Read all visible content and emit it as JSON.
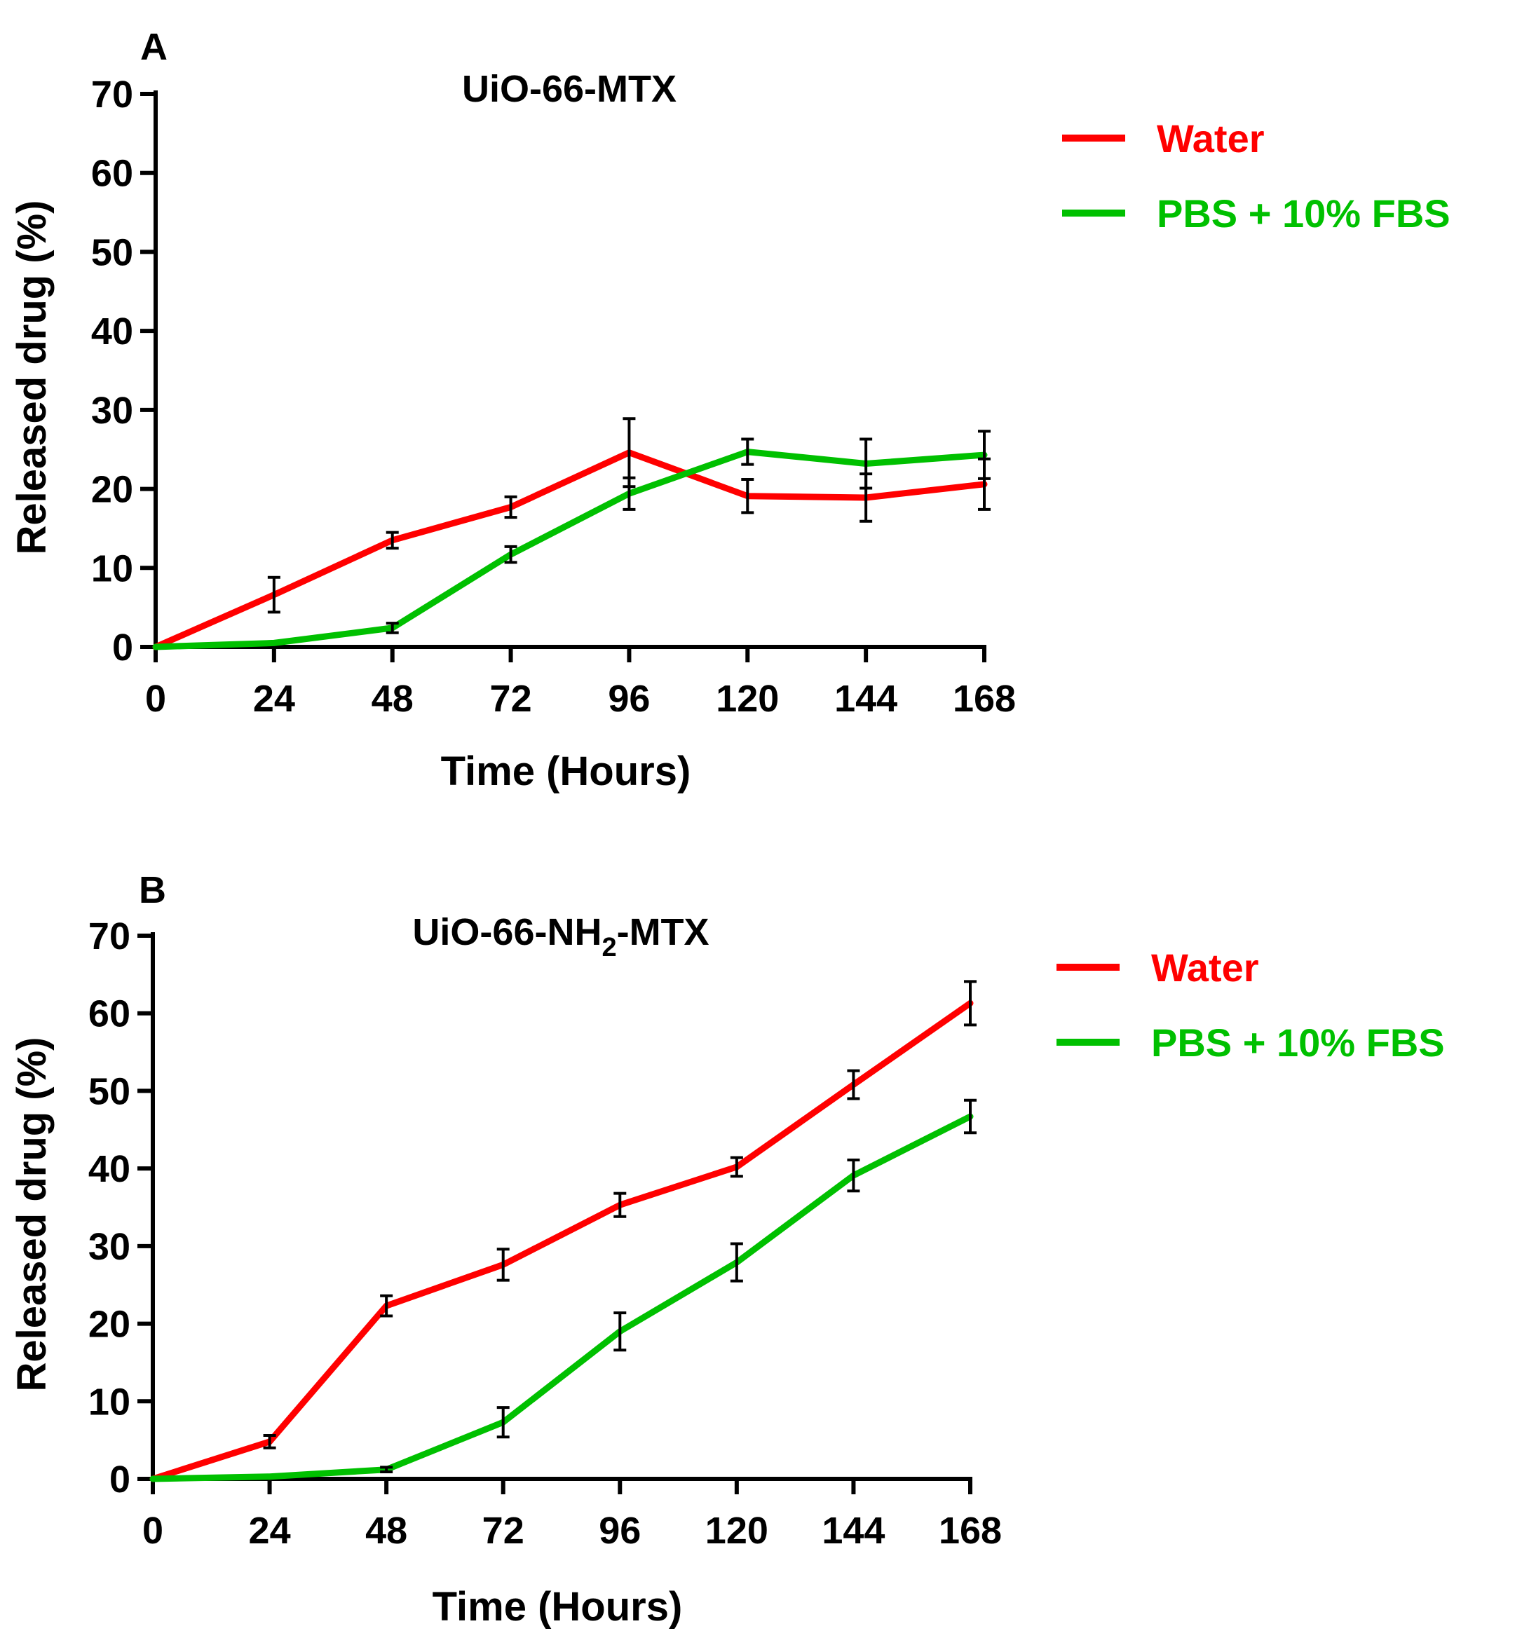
{
  "chart_data": [
    {
      "type": "line",
      "panel_label": "A",
      "title": "UiO-66-MTX",
      "title_sub": "",
      "title_suffix": "",
      "xlabel": "Time (Hours)",
      "ylabel": "Released drug (%)",
      "x": [
        0,
        24,
        48,
        72,
        96,
        120,
        144,
        168
      ],
      "xticks": [
        "0",
        "24",
        "48",
        "72",
        "96",
        "120",
        "144",
        "168"
      ],
      "yticks": [
        "0",
        "10",
        "20",
        "30",
        "40",
        "50",
        "60",
        "70"
      ],
      "ylim": [
        0,
        70
      ],
      "xlim": [
        0,
        168
      ],
      "grid": false,
      "legend_position": "right",
      "series": [
        {
          "name": "Water",
          "color": "#ff0000",
          "values": [
            0,
            6.6,
            13.5,
            17.7,
            24.6,
            19.1,
            18.9,
            20.6
          ],
          "errors": [
            0,
            2.2,
            1.0,
            1.3,
            4.3,
            2.1,
            3.0,
            3.2
          ]
        },
        {
          "name": "PBS + 10% FBS",
          "color": "#00c000",
          "values": [
            0,
            0.5,
            2.4,
            11.7,
            19.4,
            24.7,
            23.2,
            24.3
          ],
          "errors": [
            0,
            0,
            0.6,
            1.0,
            2.0,
            1.6,
            3.1,
            3.0
          ]
        }
      ]
    },
    {
      "type": "line",
      "panel_label": "B",
      "title": "UiO-66-NH",
      "title_sub": "2",
      "title_suffix": "-MTX",
      "xlabel": "Time (Hours)",
      "ylabel": "Released drug (%)",
      "x": [
        0,
        24,
        48,
        72,
        96,
        120,
        144,
        168
      ],
      "xticks": [
        "0",
        "24",
        "48",
        "72",
        "96",
        "120",
        "144",
        "168"
      ],
      "yticks": [
        "0",
        "10",
        "20",
        "30",
        "40",
        "50",
        "60",
        "70"
      ],
      "ylim": [
        0,
        70
      ],
      "xlim": [
        0,
        168
      ],
      "grid": false,
      "legend_position": "right",
      "series": [
        {
          "name": "Water",
          "color": "#ff0000",
          "values": [
            0,
            4.8,
            22.3,
            27.6,
            35.3,
            40.2,
            50.8,
            61.3
          ],
          "errors": [
            0,
            0.8,
            1.3,
            2.0,
            1.5,
            1.2,
            1.8,
            2.8
          ]
        },
        {
          "name": "PBS + 10% FBS",
          "color": "#00c000",
          "values": [
            0,
            0.3,
            1.2,
            7.3,
            19.0,
            27.9,
            39.1,
            46.7
          ],
          "errors": [
            0,
            0,
            0.3,
            1.9,
            2.4,
            2.4,
            2.0,
            2.1
          ]
        }
      ]
    }
  ]
}
